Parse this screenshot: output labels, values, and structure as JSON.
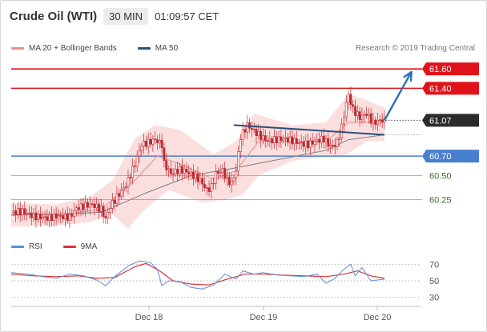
{
  "header": {
    "title": "Crude Oil (WTI)",
    "timeframe": "30 MIN",
    "time": "01:09:57 CET"
  },
  "legend": {
    "items": [
      {
        "label": "MA 20 + Bollinger Bands",
        "color": "#f08c8c"
      },
      {
        "label": "MA 50",
        "color": "#2c4f7c"
      }
    ],
    "research": "Research © 2019 Trading Central"
  },
  "colors": {
    "resistance": "#e0131b",
    "pivot": "#4a7fcf",
    "support": "#7db05a",
    "current": "#333333",
    "trend": "#2c4f7c",
    "arrow": "#2a6fb0",
    "bollinger": "#f7c5c5",
    "ma20": "#e28a8a",
    "ma50": "#7d8087",
    "candle": "#c0272d",
    "rsi": "#5b8fd6",
    "rsi_ma": "#d9333a"
  },
  "chart_data": [
    {
      "type": "candlestick",
      "title": "Crude Oil (WTI)",
      "x_ticks": [
        "Dec 18",
        "Dec 19",
        "Dec 20"
      ],
      "ylim": [
        59.9,
        61.75
      ],
      "levels": [
        {
          "value": 61.6,
          "label": "61.60",
          "kind": "resistance"
        },
        {
          "value": 61.4,
          "label": "61.40",
          "kind": "resistance"
        },
        {
          "value": 61.07,
          "label": "61.07",
          "kind": "current"
        },
        {
          "value": 60.7,
          "label": "60.70",
          "kind": "pivot"
        },
        {
          "value": 60.5,
          "label": "60.50",
          "kind": "support"
        },
        {
          "value": 60.25,
          "label": "60.25",
          "kind": "support"
        }
      ],
      "close_path": [
        [
          0,
          60.12
        ],
        [
          5,
          60.13
        ],
        [
          10,
          60.08
        ],
        [
          16,
          60.06
        ],
        [
          20,
          60.08
        ],
        [
          26,
          60.07
        ],
        [
          29,
          60.16
        ],
        [
          33,
          60.19
        ],
        [
          36,
          60.2
        ],
        [
          40,
          60.15
        ],
        [
          42,
          60.05
        ],
        [
          44,
          60.18
        ],
        [
          47,
          60.28
        ],
        [
          51,
          60.4
        ],
        [
          55,
          60.62
        ],
        [
          58,
          60.82
        ],
        [
          61,
          60.84
        ],
        [
          64,
          60.87
        ],
        [
          67,
          60.82
        ],
        [
          68,
          60.62
        ],
        [
          71,
          60.52
        ],
        [
          75,
          60.56
        ],
        [
          78,
          60.54
        ],
        [
          81,
          60.5
        ],
        [
          84,
          60.45
        ],
        [
          87,
          60.35
        ],
        [
          89,
          60.38
        ],
        [
          91,
          60.52
        ],
        [
          94,
          60.55
        ],
        [
          96,
          60.45
        ],
        [
          98,
          60.42
        ],
        [
          100,
          60.55
        ],
        [
          102,
          60.9
        ],
        [
          105,
          61.02
        ],
        [
          108,
          60.96
        ],
        [
          111,
          60.9
        ],
        [
          114,
          60.86
        ],
        [
          118,
          60.87
        ],
        [
          121,
          60.88
        ],
        [
          125,
          60.86
        ],
        [
          129,
          60.83
        ],
        [
          132,
          60.82
        ],
        [
          136,
          60.86
        ],
        [
          139,
          60.88
        ],
        [
          141,
          60.82
        ],
        [
          143,
          60.8
        ],
        [
          145,
          60.84
        ],
        [
          147,
          61.0
        ],
        [
          149,
          61.25
        ],
        [
          150,
          61.33
        ],
        [
          152,
          61.18
        ],
        [
          155,
          61.1
        ],
        [
          158,
          61.14
        ],
        [
          161,
          61.04
        ],
        [
          164,
          61.07
        ],
        [
          166,
          61.07
        ]
      ],
      "ma50_path": [
        [
          0,
          60.09
        ],
        [
          20,
          60.1
        ],
        [
          40,
          60.12
        ],
        [
          60,
          60.32
        ],
        [
          80,
          60.5
        ],
        [
          100,
          60.58
        ],
        [
          120,
          60.67
        ],
        [
          140,
          60.76
        ],
        [
          150,
          60.87
        ],
        [
          166,
          60.92
        ]
      ],
      "ma20_path": [
        [
          0,
          60.1
        ],
        [
          20,
          60.09
        ],
        [
          40,
          60.15
        ],
        [
          55,
          60.45
        ],
        [
          65,
          60.7
        ],
        [
          75,
          60.62
        ],
        [
          90,
          60.46
        ],
        [
          100,
          60.55
        ],
        [
          110,
          60.85
        ],
        [
          125,
          60.85
        ],
        [
          140,
          60.85
        ],
        [
          150,
          61.05
        ],
        [
          166,
          61.05
        ]
      ],
      "bollinger_upper": [
        [
          0,
          60.22
        ],
        [
          20,
          60.2
        ],
        [
          35,
          60.28
        ],
        [
          45,
          60.45
        ],
        [
          55,
          60.88
        ],
        [
          64,
          61.02
        ],
        [
          75,
          60.97
        ],
        [
          90,
          60.72
        ],
        [
          100,
          60.85
        ],
        [
          108,
          61.14
        ],
        [
          125,
          61.02
        ],
        [
          140,
          61.05
        ],
        [
          150,
          61.34
        ],
        [
          158,
          61.28
        ],
        [
          166,
          61.2
        ]
      ],
      "bollinger_lower": [
        [
          0,
          59.97
        ],
        [
          20,
          59.98
        ],
        [
          35,
          60.02
        ],
        [
          45,
          60.1
        ],
        [
          52,
          59.95
        ],
        [
          58,
          60.12
        ],
        [
          70,
          60.35
        ],
        [
          85,
          60.22
        ],
        [
          95,
          60.25
        ],
        [
          103,
          60.3
        ],
        [
          110,
          60.5
        ],
        [
          125,
          60.65
        ],
        [
          140,
          60.7
        ],
        [
          148,
          60.7
        ],
        [
          158,
          60.85
        ],
        [
          166,
          60.86
        ]
      ],
      "trend_line": [
        [
          99,
          61.02
        ],
        [
          166,
          60.92
        ]
      ],
      "forecast_arrow": [
        [
          166,
          61.07
        ],
        [
          178,
          61.57
        ]
      ]
    },
    {
      "type": "line",
      "title": "RSI",
      "series": [
        {
          "name": "RSI",
          "values": [
            [
              0,
              60
            ],
            [
              8,
              58
            ],
            [
              14,
              55
            ],
            [
              20,
              53
            ],
            [
              26,
              58
            ],
            [
              32,
              56
            ],
            [
              38,
              51
            ],
            [
              42,
              44
            ],
            [
              46,
              55
            ],
            [
              52,
              68
            ],
            [
              57,
              74
            ],
            [
              62,
              72
            ],
            [
              65,
              64
            ],
            [
              67,
              44
            ],
            [
              70,
              50
            ],
            [
              75,
              49
            ],
            [
              80,
              42
            ],
            [
              85,
              40
            ],
            [
              90,
              45
            ],
            [
              95,
              58
            ],
            [
              100,
              52
            ],
            [
              103,
              62
            ],
            [
              108,
              58
            ],
            [
              112,
              60
            ],
            [
              118,
              57
            ],
            [
              124,
              56
            ],
            [
              130,
              55
            ],
            [
              136,
              58
            ],
            [
              140,
              47
            ],
            [
              144,
              53
            ],
            [
              148,
              64
            ],
            [
              151,
              70
            ],
            [
              153,
              56
            ],
            [
              156,
              66
            ],
            [
              160,
              50
            ],
            [
              166,
              52
            ]
          ]
        },
        {
          "name": "9MA",
          "values": [
            [
              0,
              58
            ],
            [
              10,
              56
            ],
            [
              20,
              55
            ],
            [
              30,
              56
            ],
            [
              38,
              53
            ],
            [
              46,
              54
            ],
            [
              55,
              67
            ],
            [
              60,
              71
            ],
            [
              66,
              62
            ],
            [
              72,
              50
            ],
            [
              80,
              46
            ],
            [
              88,
              45
            ],
            [
              96,
              52
            ],
            [
              104,
              58
            ],
            [
              112,
              58
            ],
            [
              120,
              57
            ],
            [
              130,
              56
            ],
            [
              140,
              55
            ],
            [
              148,
              58
            ],
            [
              154,
              62
            ],
            [
              160,
              56
            ],
            [
              166,
              53
            ]
          ]
        }
      ],
      "y_ticks": [
        70,
        50,
        30
      ],
      "ylim": [
        20,
        80
      ]
    }
  ]
}
